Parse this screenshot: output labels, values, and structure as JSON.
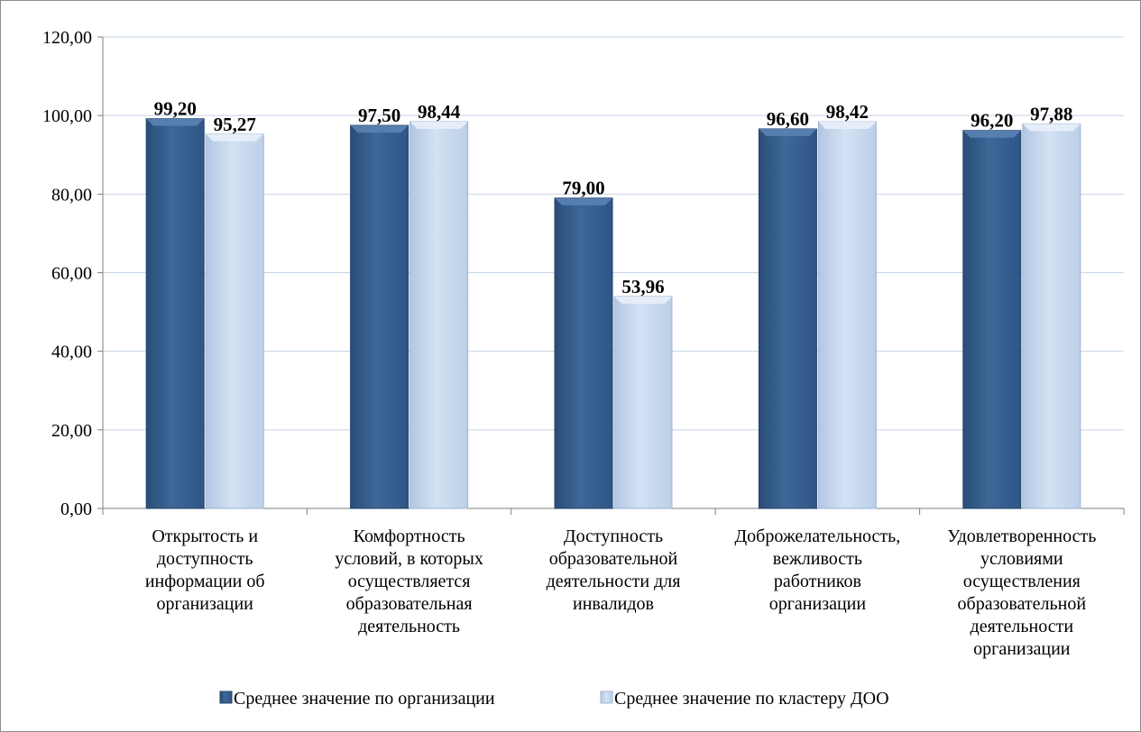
{
  "chart_data": {
    "type": "bar",
    "categories": [
      [
        "Открытость и",
        "доступность",
        "информации об",
        "организации"
      ],
      [
        "Комфортность",
        "условий, в которых",
        "осуществляется",
        "образовательная",
        "деятельность"
      ],
      [
        "Доступность",
        "образовательной",
        "деятельности для",
        "инвалидов"
      ],
      [
        "Доброжелательность,",
        "вежливость",
        "работников",
        "организации"
      ],
      [
        "Удовлетворенность",
        "условиями",
        "осуществления",
        "образовательной",
        "деятельности",
        "организации"
      ]
    ],
    "series": [
      {
        "name": "Среднее значение по организации",
        "color": "#3b6596",
        "values": [
          99.2,
          97.5,
          79.0,
          96.6,
          96.2
        ],
        "labels": [
          "99,20",
          "97,50",
          "79,00",
          "96,60",
          "96,20"
        ]
      },
      {
        "name": "Среднее значение по кластеру ДОО",
        "color": "#c6d7ee",
        "values": [
          95.27,
          98.44,
          53.96,
          98.42,
          97.88
        ],
        "labels": [
          "95,27",
          "98,44",
          "53,96",
          "98,42",
          "97,88"
        ]
      }
    ],
    "ylim": [
      0,
      120
    ],
    "yticks": [
      0,
      20,
      40,
      60,
      80,
      100,
      120
    ],
    "ytick_labels": [
      "0,00",
      "20,00",
      "40,00",
      "60,00",
      "80,00",
      "100,00",
      "120,00"
    ],
    "grid": true,
    "legend_position": "bottom"
  }
}
